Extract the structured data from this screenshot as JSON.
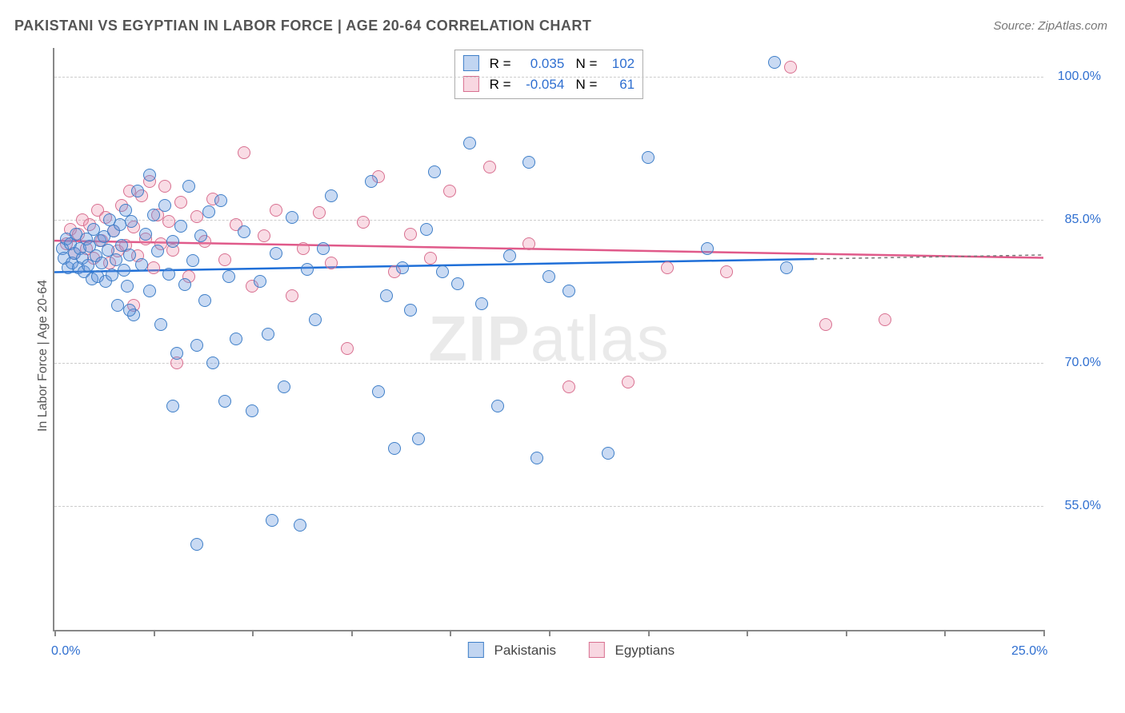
{
  "title": "PAKISTANI VS EGYPTIAN IN LABOR FORCE | AGE 20-64 CORRELATION CHART",
  "source": "Source: ZipAtlas.com",
  "ylabel": "In Labor Force | Age 20-64",
  "watermark_html": "<span class='z'>ZIP</span>atlas",
  "chart": {
    "type": "scatter",
    "background_color": "#ffffff",
    "grid_color": "#cccccc",
    "axis_color": "#888888",
    "tick_label_color": "#2f6fd0",
    "title_fontsize": 18,
    "label_fontsize": 16,
    "xlim": [
      0,
      25
    ],
    "ylim": [
      42,
      103
    ],
    "x_ticks": [
      0,
      2.5,
      5,
      7.5,
      10,
      12.5,
      15,
      17.5,
      20,
      22.5,
      25
    ],
    "x_tick_labels": {
      "0": "0.0%",
      "25": "25.0%"
    },
    "y_gridlines": [
      55,
      70,
      85,
      100
    ],
    "y_tick_labels": {
      "55": "55.0%",
      "70": "70.0%",
      "85": "85.0%",
      "100": "100.0%"
    },
    "marker_size": 16,
    "marker_opacity": 0.35,
    "trend_a": {
      "y_at_x0": 79.5,
      "y_at_xmax": 81.3,
      "x_stop": 19.2,
      "color": "#1f6fd8",
      "width": 2.5,
      "dash_after": "4,4",
      "dash_color": "#777777"
    },
    "trend_b": {
      "y_at_x0": 82.8,
      "y_at_xmax": 81.0,
      "color": "#e05a8a",
      "width": 2.5
    }
  },
  "series_a": {
    "name": "Pakistanis",
    "color_fill": "rgba(100,150,220,0.35)",
    "color_stroke": "#3f7fc8",
    "R": "0.035",
    "N": "102",
    "points": [
      [
        0.2,
        82
      ],
      [
        0.25,
        81
      ],
      [
        0.3,
        83
      ],
      [
        0.35,
        80
      ],
      [
        0.4,
        82.5
      ],
      [
        0.45,
        80.5
      ],
      [
        0.5,
        81.5
      ],
      [
        0.55,
        83.5
      ],
      [
        0.6,
        80
      ],
      [
        0.65,
        82
      ],
      [
        0.7,
        81
      ],
      [
        0.75,
        79.5
      ],
      [
        0.8,
        83
      ],
      [
        0.85,
        80.2
      ],
      [
        0.9,
        82.2
      ],
      [
        0.95,
        78.8
      ],
      [
        1.0,
        84
      ],
      [
        1.05,
        81.2
      ],
      [
        1.1,
        79
      ],
      [
        1.15,
        82.8
      ],
      [
        1.2,
        80.5
      ],
      [
        1.25,
        83.2
      ],
      [
        1.3,
        78.5
      ],
      [
        1.35,
        81.8
      ],
      [
        1.4,
        85
      ],
      [
        1.45,
        79.2
      ],
      [
        1.5,
        83.8
      ],
      [
        1.55,
        80.8
      ],
      [
        1.6,
        76
      ],
      [
        1.65,
        84.5
      ],
      [
        1.7,
        82.3
      ],
      [
        1.75,
        79.7
      ],
      [
        1.8,
        86
      ],
      [
        1.85,
        78
      ],
      [
        1.9,
        81.3
      ],
      [
        1.95,
        84.8
      ],
      [
        2.0,
        75
      ],
      [
        2.1,
        88
      ],
      [
        2.2,
        80.3
      ],
      [
        2.3,
        83.5
      ],
      [
        2.4,
        77.5
      ],
      [
        2.5,
        85.5
      ],
      [
        2.6,
        81.7
      ],
      [
        2.7,
        74
      ],
      [
        2.8,
        86.5
      ],
      [
        2.9,
        79.3
      ],
      [
        3.0,
        82.7
      ],
      [
        3.1,
        71
      ],
      [
        3.2,
        84.3
      ],
      [
        3.3,
        78.2
      ],
      [
        3.4,
        88.5
      ],
      [
        3.5,
        80.7
      ],
      [
        3.6,
        71.8
      ],
      [
        3.7,
        83.3
      ],
      [
        3.8,
        76.5
      ],
      [
        3.9,
        85.8
      ],
      [
        4.0,
        70
      ],
      [
        4.2,
        87
      ],
      [
        4.4,
        79
      ],
      [
        4.6,
        72.5
      ],
      [
        4.8,
        83.7
      ],
      [
        5.0,
        65
      ],
      [
        5.2,
        78.5
      ],
      [
        5.4,
        73
      ],
      [
        5.6,
        81.5
      ],
      [
        5.8,
        67.5
      ],
      [
        6.0,
        85.2
      ],
      [
        6.2,
        53
      ],
      [
        6.4,
        79.8
      ],
      [
        6.6,
        74.5
      ],
      [
        6.8,
        82
      ],
      [
        7.0,
        87.5
      ],
      [
        8.0,
        89
      ],
      [
        8.2,
        67
      ],
      [
        8.4,
        77
      ],
      [
        8.6,
        61
      ],
      [
        8.8,
        80
      ],
      [
        9.0,
        75.5
      ],
      [
        9.2,
        62
      ],
      [
        9.4,
        84
      ],
      [
        9.6,
        90
      ],
      [
        9.8,
        79.5
      ],
      [
        10.2,
        78.3
      ],
      [
        10.5,
        93
      ],
      [
        10.8,
        76.2
      ],
      [
        11.2,
        65.5
      ],
      [
        11.5,
        81.2
      ],
      [
        12.0,
        91
      ],
      [
        12.2,
        60
      ],
      [
        12.5,
        79
      ],
      [
        13.0,
        77.5
      ],
      [
        14.0,
        60.5
      ],
      [
        15.0,
        91.5
      ],
      [
        16.5,
        82
      ],
      [
        18.2,
        101.5
      ],
      [
        18.5,
        80
      ],
      [
        3.6,
        51
      ],
      [
        4.3,
        66
      ],
      [
        5.5,
        53.5
      ],
      [
        2.4,
        89.7
      ],
      [
        1.9,
        75.5
      ],
      [
        3.0,
        65.5
      ]
    ]
  },
  "series_b": {
    "name": "Egyptians",
    "color_fill": "rgba(235,140,170,0.30)",
    "color_stroke": "#d87090",
    "R": "-0.054",
    "N": "61",
    "points": [
      [
        0.3,
        82.5
      ],
      [
        0.4,
        84
      ],
      [
        0.5,
        81.5
      ],
      [
        0.6,
        83.5
      ],
      [
        0.7,
        85
      ],
      [
        0.8,
        82
      ],
      [
        0.9,
        84.5
      ],
      [
        1.0,
        81
      ],
      [
        1.1,
        86
      ],
      [
        1.2,
        82.8
      ],
      [
        1.3,
        85.2
      ],
      [
        1.4,
        80.5
      ],
      [
        1.5,
        83.8
      ],
      [
        1.6,
        81.7
      ],
      [
        1.7,
        86.5
      ],
      [
        1.8,
        82.3
      ],
      [
        1.9,
        88
      ],
      [
        2.0,
        84.2
      ],
      [
        2.1,
        81.2
      ],
      [
        2.2,
        87.5
      ],
      [
        2.3,
        83
      ],
      [
        2.4,
        89
      ],
      [
        2.5,
        80
      ],
      [
        2.6,
        85.5
      ],
      [
        2.7,
        82.5
      ],
      [
        2.8,
        88.5
      ],
      [
        2.9,
        84.8
      ],
      [
        3.0,
        81.8
      ],
      [
        3.2,
        86.8
      ],
      [
        3.4,
        79
      ],
      [
        3.6,
        85.3
      ],
      [
        3.8,
        82.7
      ],
      [
        4.0,
        87.2
      ],
      [
        4.3,
        80.8
      ],
      [
        4.6,
        84.5
      ],
      [
        5.0,
        78
      ],
      [
        5.3,
        83.3
      ],
      [
        5.6,
        86
      ],
      [
        6.0,
        77
      ],
      [
        6.3,
        82
      ],
      [
        6.7,
        85.7
      ],
      [
        7.0,
        80.5
      ],
      [
        7.4,
        71.5
      ],
      [
        7.8,
        84.7
      ],
      [
        8.2,
        89.5
      ],
      [
        8.6,
        79.5
      ],
      [
        9.0,
        83.5
      ],
      [
        9.5,
        81
      ],
      [
        10.0,
        88
      ],
      [
        11.0,
        90.5
      ],
      [
        12.0,
        82.5
      ],
      [
        13.0,
        67.5
      ],
      [
        14.5,
        68
      ],
      [
        15.5,
        80
      ],
      [
        17.0,
        79.5
      ],
      [
        18.6,
        101
      ],
      [
        19.5,
        74
      ],
      [
        21.0,
        74.5
      ],
      [
        4.8,
        92
      ],
      [
        3.1,
        70
      ],
      [
        2.0,
        76
      ]
    ]
  },
  "legend_top": {
    "R_label": "R =",
    "N_label": "N ="
  },
  "legend_bottom": {
    "a": "Pakistanis",
    "b": "Egyptians"
  }
}
